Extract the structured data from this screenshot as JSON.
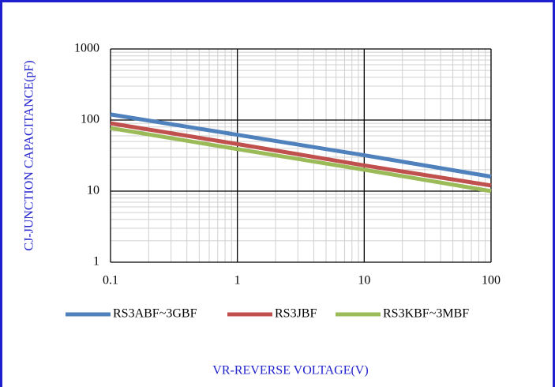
{
  "chart_data": {
    "type": "line",
    "log_x": true,
    "log_y": true,
    "grid": true,
    "minor_grid": true,
    "x_label": "VR-REVERSE VOLTAGE(V)",
    "y_label": "CJ-JUNCTION CAPACITANCE(pF)",
    "x": [
      0.1,
      1,
      10,
      100
    ],
    "series": [
      {
        "name": "RS3ABF~3GBF",
        "color": "#4f81bd",
        "values": [
          120,
          62,
          32,
          16
        ]
      },
      {
        "name": "RS3JBF",
        "color": "#c0504d",
        "values": [
          90,
          46,
          23,
          12
        ]
      },
      {
        "name": "RS3KBF~3MBF",
        "color": "#9bbb59",
        "values": [
          77,
          39,
          20,
          10
        ]
      }
    ],
    "xlim": [
      0.1,
      100
    ],
    "xticks": [
      0.1,
      1,
      10,
      100
    ],
    "ylim": [
      1,
      1000
    ],
    "yticks": [
      1,
      10,
      100,
      1000
    ],
    "legend": "bottom"
  }
}
